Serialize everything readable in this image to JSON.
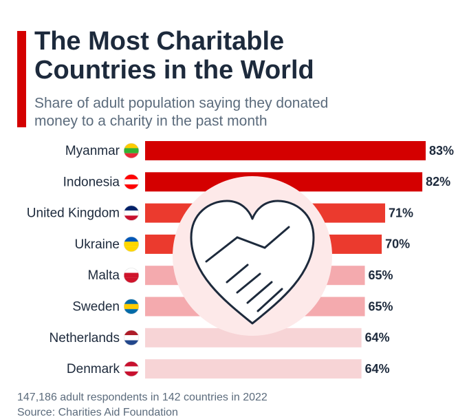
{
  "chart_data": {
    "type": "bar",
    "orientation": "horizontal",
    "title": [
      "The Most Charitable",
      "Countries in the World"
    ],
    "subtitle": [
      "Share of adult population saying they donated",
      "money to a charity in the past month"
    ],
    "categories": [
      "Myanmar",
      "Indonesia",
      "United Kingdom",
      "Ukraine",
      "Malta",
      "Sweden",
      "Netherlands",
      "Denmark"
    ],
    "values": [
      83,
      82,
      71,
      70,
      65,
      65,
      64,
      64
    ],
    "value_labels": [
      "83%",
      "82%",
      "71%",
      "70%",
      "65%",
      "65%",
      "64%",
      "64%"
    ],
    "colors": [
      "#d40000",
      "#d40000",
      "#eb3a2e",
      "#eb3a2e",
      "#f4aaae",
      "#f4aaae",
      "#f7d4d6",
      "#f7d4d6"
    ],
    "xlim": [
      0,
      100
    ],
    "notes": [
      "147,186 adult respondents in 142 countries in 2022",
      "Source: Charities Aid Foundation"
    ]
  }
}
